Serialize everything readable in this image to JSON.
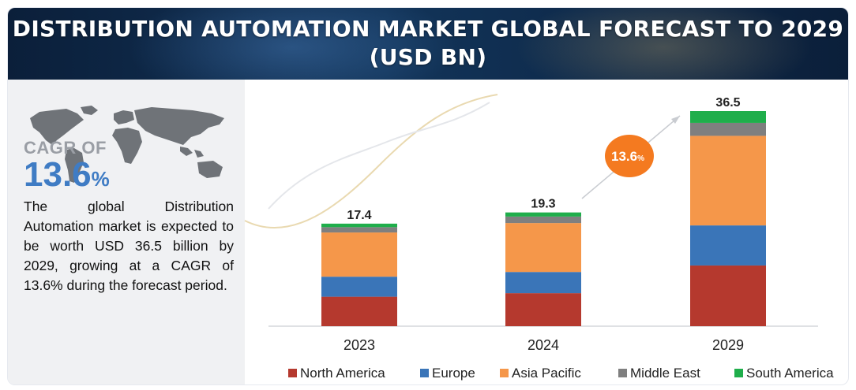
{
  "header": {
    "title_line1": "DISTRIBUTION AUTOMATION MARKET GLOBAL FORECAST TO 2029",
    "title_line2": "(USD BN)"
  },
  "sidebar": {
    "cagr_label": "CAGR OF",
    "cagr_number": "13.6",
    "cagr_symbol": "%",
    "description": "The global Distribution Automation market is expected to be worth USD 36.5 billion by 2029, growing at a CAGR of 13.6% during the forecast period."
  },
  "colors": {
    "north_america": "#b5392e",
    "europe": "#3a75b8",
    "asia_pacific": "#f5974a",
    "middle_east": "#7f7f7f",
    "south_america": "#1fae4b",
    "bubble": "#f47a20",
    "cagr_text": "#3f7cc4"
  },
  "chart_data": {
    "type": "bar",
    "stacked": true,
    "categories": [
      "2023",
      "2024",
      "2029"
    ],
    "totals": [
      17.4,
      19.3,
      36.5
    ],
    "series": [
      {
        "name": "North America",
        "values": [
          5.0,
          5.6,
          10.3
        ]
      },
      {
        "name": "Europe",
        "values": [
          3.4,
          3.6,
          6.8
        ]
      },
      {
        "name": "Asia Pacific",
        "values": [
          7.5,
          8.3,
          15.2
        ]
      },
      {
        "name": "Middle East",
        "values": [
          0.9,
          1.1,
          2.2
        ]
      },
      {
        "name": "South America",
        "values": [
          0.6,
          0.7,
          2.0
        ]
      }
    ],
    "annotation": {
      "text": "13.6",
      "unit": "%"
    },
    "ylim": [
      0,
      36.5
    ],
    "legend_position": "bottom",
    "grid": false
  }
}
